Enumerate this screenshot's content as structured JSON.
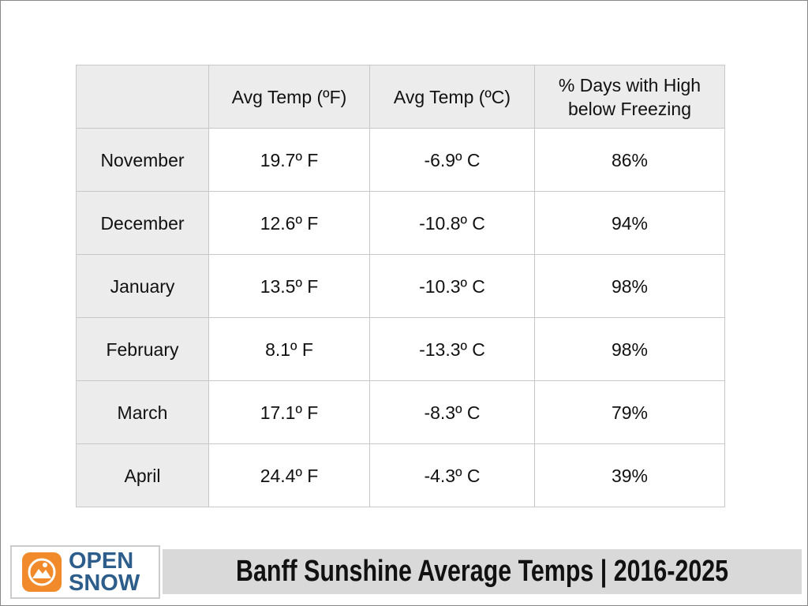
{
  "table": {
    "header": [
      "Avg Temp (ºF)",
      "Avg Temp (ºC)",
      "% Days with High below Freezing"
    ],
    "rows": [
      [
        "November",
        "19.7º F",
        "-6.9º C",
        "86%"
      ],
      [
        "December",
        "12.6º F",
        "-10.8º C",
        "94%"
      ],
      [
        "January",
        "13.5º F",
        "-10.3º C",
        "98%"
      ],
      [
        "February",
        "8.1º F",
        "-13.3º C",
        "98%"
      ],
      [
        "March",
        "17.1º F",
        "-8.3º C",
        "79%"
      ],
      [
        "April",
        "24.4º F",
        "-4.3º C",
        "39%"
      ]
    ]
  },
  "logo": {
    "line1": "OPEN",
    "line2": "SNOW"
  },
  "footer": {
    "title": "Banff Sunshine Average Temps | 2016-2025"
  }
}
